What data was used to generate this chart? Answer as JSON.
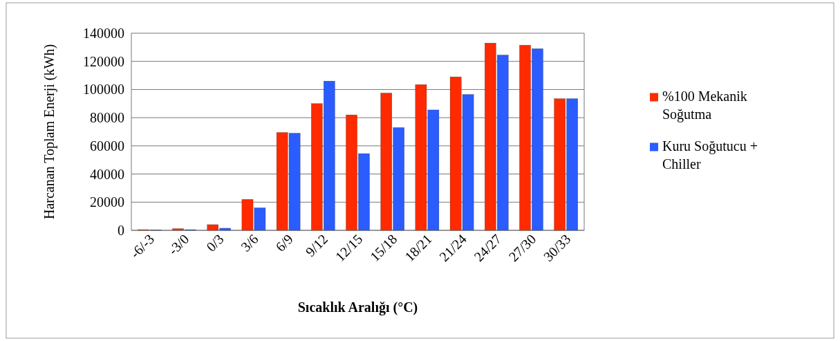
{
  "chart_data": {
    "type": "bar",
    "xlabel": "Sıcaklık Aralığı (°C)",
    "ylabel": "Harcanan Toplam Enerji (kWh)",
    "categories": [
      "-6/-3",
      "-3/0",
      "0/3",
      "3/6",
      "6/9",
      "9/12",
      "12/15",
      "15/18",
      "18/21",
      "21/24",
      "24/27",
      "27/30",
      "30/33"
    ],
    "series": [
      {
        "name": "%100 Mekanik Soğutma",
        "color": "#ff2a00",
        "values": [
          500,
          1200,
          4000,
          22000,
          69500,
          90000,
          82000,
          97500,
          103500,
          109000,
          133000,
          131500,
          93500
        ]
      },
      {
        "name": "Kuru Soğutucu + Chiller",
        "color": "#2a5cff",
        "values": [
          300,
          500,
          1500,
          16000,
          69000,
          106000,
          54500,
          73000,
          85500,
          96500,
          124500,
          129000,
          93500
        ]
      }
    ],
    "ylim": [
      0,
      140000
    ],
    "yticks": [
      0,
      20000,
      40000,
      60000,
      80000,
      100000,
      120000,
      140000
    ],
    "grid": "y",
    "legend": "right"
  }
}
